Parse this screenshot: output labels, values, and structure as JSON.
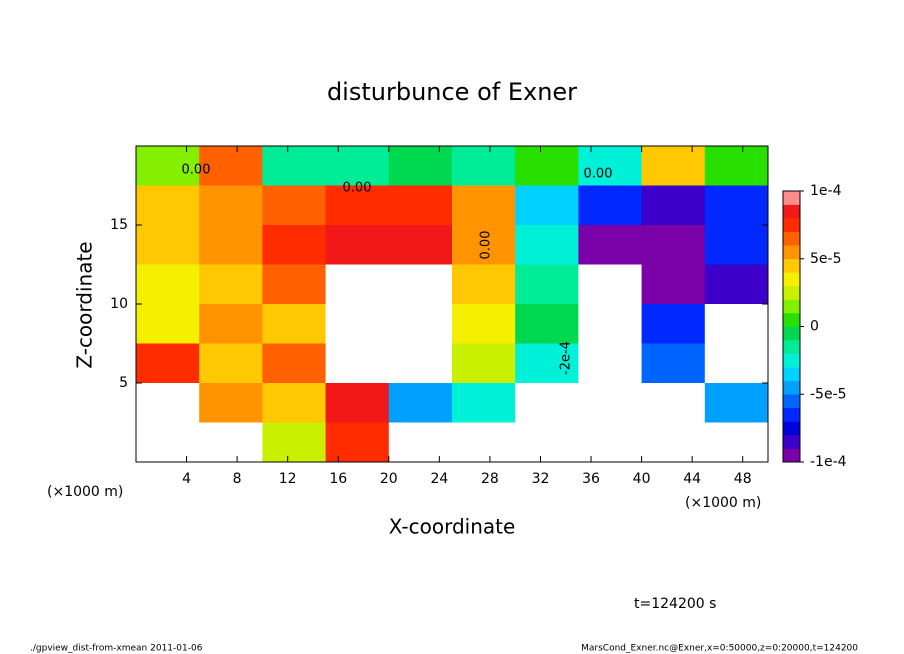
{
  "chart_data": {
    "type": "contour",
    "title": "disturbunce of Exner",
    "x_label": "X-coordinate",
    "y_label": "Z-coordinate",
    "x_unit": "(×1000 m)",
    "time_label": "t=124200 s",
    "footer_left": "./gpview_dist-from-xmean  2011-01-06",
    "footer_right": "MarsCond_Exner.nc@Exner,x=0:50000,z=0:20000,t=124200",
    "annotations": [
      "0.00",
      "0.00",
      "0.00",
      "0.00",
      "-2e-4"
    ],
    "xlim": [
      0,
      50
    ],
    "xticks": [
      4,
      8,
      12,
      16,
      20,
      24,
      28,
      32,
      36,
      40,
      44,
      48
    ],
    "ylim": [
      0,
      20
    ],
    "yticks": [
      5,
      10,
      15
    ],
    "x": [
      2.5,
      7.5,
      12.5,
      17.5,
      22.5,
      27.5,
      32.5,
      37.5,
      42.5,
      47.5
    ],
    "y": [
      18.75,
      16.25,
      13.75,
      11.25,
      8.75,
      6.25,
      3.75,
      1.25
    ],
    "z": [
      [
        1e-05,
        6e-05,
        -2e-05,
        -2e-05,
        -1e-05,
        -2e-05,
        0,
        -3e-05,
        4e-05,
        0
      ],
      [
        4e-05,
        5e-05,
        6e-05,
        7e-05,
        7e-05,
        5e-05,
        -4e-05,
        -7e-05,
        -8e-05,
        -7e-05
      ],
      [
        4e-05,
        5e-05,
        7e-05,
        8e-05,
        8e-05,
        5e-05,
        -3e-05,
        -9e-05,
        -9e-05,
        -7e-05
      ],
      [
        3e-05,
        4e-05,
        6e-05,
        0.00012,
        0.00012,
        4e-05,
        -2e-05,
        -0.00012,
        -9e-05,
        -8e-05
      ],
      [
        3e-05,
        5e-05,
        4e-05,
        0.00012,
        0.00012,
        3e-05,
        -1e-05,
        -0.00013,
        -7e-05,
        -0.00013
      ],
      [
        7e-05,
        4e-05,
        6e-05,
        0.00012,
        0.00011,
        2e-05,
        -3e-05,
        -0.00013,
        -6e-05,
        -0.00012
      ],
      [
        0.00013,
        5e-05,
        4e-05,
        8e-05,
        -5e-05,
        -3e-05,
        -0.00012,
        -0.00013,
        0.00013,
        -5e-05
      ],
      [
        0.00012,
        0.00013,
        2e-05,
        7e-05,
        -0.00012,
        -0.00014,
        -0.00014,
        -0.00014,
        -0.00014,
        -0.00012
      ]
    ],
    "zlim": [
      -0.0001,
      0.0001
    ],
    "zticks": [
      {
        "value": 0.0001,
        "label": "1e-4"
      },
      {
        "value": 5e-05,
        "label": "5e-5"
      },
      0,
      {
        "value": -5e-05,
        "label": "-5e-5"
      },
      {
        "value": -0.0001,
        "label": "-1e-4"
      }
    ],
    "colors": [
      "#7a00a8",
      "#3c00c8",
      "#0000dc",
      "#0028ff",
      "#0064ff",
      "#00a0ff",
      "#00d2ff",
      "#00f0d8",
      "#00ec96",
      "#00d850",
      "#28e000",
      "#84f000",
      "#c8f000",
      "#f4f000",
      "#ffc800",
      "#ff9400",
      "#ff6000",
      "#ff2c00",
      "#f01818",
      "#ff8c8c"
    ],
    "out_of_range_color": "#ffffff"
  }
}
